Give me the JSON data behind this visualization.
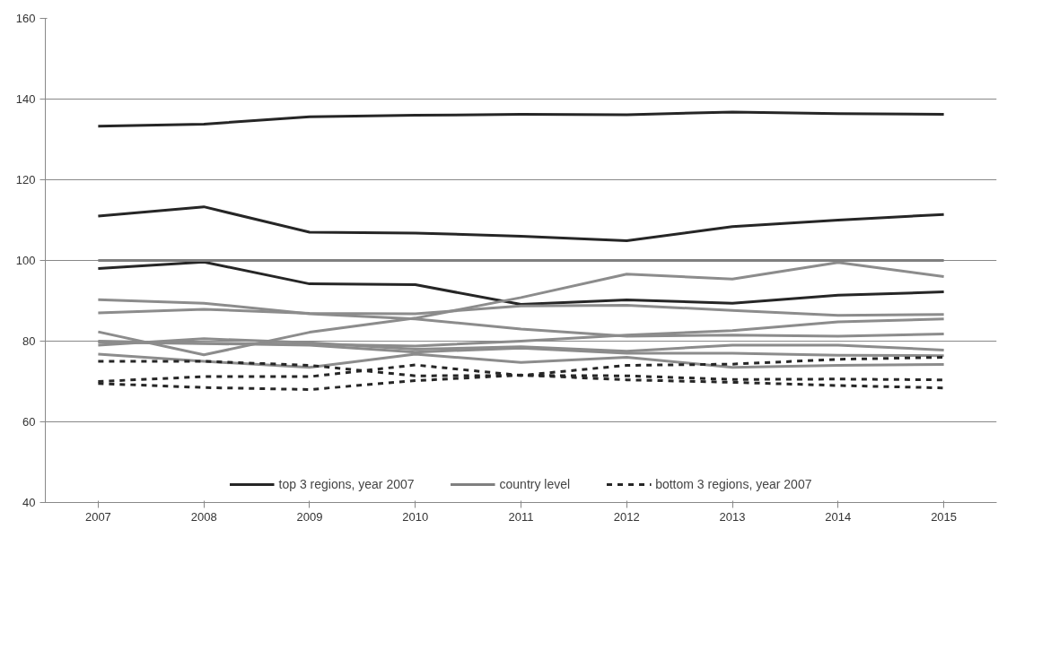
{
  "chart_data": {
    "type": "line",
    "categories": [
      "2007",
      "2008",
      "2009",
      "2010",
      "2011",
      "2012",
      "2013",
      "2014",
      "2015"
    ],
    "ylim": [
      40,
      160
    ],
    "yticks": [
      40,
      60,
      80,
      100,
      120,
      140,
      160
    ],
    "grid": "y",
    "legend": "bottom",
    "marker": "none",
    "series": [
      {
        "name": "top 3 regions, year 2007",
        "color": "#262626",
        "line_style": "solid",
        "values": [
          133.3,
          133.8,
          135.6,
          136.0,
          136.2,
          136.1,
          136.8,
          136.4,
          136.2
        ]
      },
      {
        "color": "#262626",
        "line_style": "solid",
        "values": [
          111.0,
          113.3,
          107.0,
          106.8,
          106.0,
          104.9,
          108.4,
          110.0,
          111.4
        ]
      },
      {
        "color": "#262626",
        "line_style": "solid",
        "values": [
          98.0,
          99.6,
          94.2,
          94.0,
          89.1,
          90.2,
          89.4,
          91.4,
          92.2
        ]
      },
      {
        "color": "#8c8c8c",
        "line_style": "solid",
        "values": [
          90.3,
          89.4,
          86.8,
          85.5,
          83.0,
          81.2,
          81.5,
          81.2,
          81.8
        ]
      },
      {
        "color": "#8c8c8c",
        "line_style": "solid",
        "values": [
          87.0,
          87.9,
          86.9,
          86.8,
          88.7,
          88.9,
          87.6,
          86.4,
          86.6
        ]
      },
      {
        "color": "#8c8c8c",
        "line_style": "solid",
        "values": [
          82.3,
          76.6,
          82.2,
          85.7,
          90.8,
          96.6,
          95.4,
          99.5,
          96.0
        ]
      },
      {
        "color": "#8c8c8c",
        "line_style": "solid",
        "values": [
          79.0,
          80.6,
          79.6,
          78.0,
          78.6,
          77.5,
          79.0,
          79.0,
          77.8
        ]
      },
      {
        "color": "#8c8c8c",
        "line_style": "solid",
        "values": [
          80.0,
          79.5,
          79.2,
          78.8,
          80.0,
          81.5,
          82.6,
          84.8,
          85.5
        ]
      },
      {
        "color": "#8c8c8c",
        "line_style": "solid",
        "values": [
          79.7,
          79.4,
          79.0,
          77.3,
          78.3,
          77.0,
          77.0,
          76.5,
          76.4
        ]
      },
      {
        "color": "#8c8c8c",
        "line_style": "solid",
        "values": [
          76.8,
          75.0,
          73.5,
          76.8,
          74.7,
          76.0,
          73.5,
          74.0,
          74.2
        ]
      },
      {
        "name": "country level",
        "color": "#7f7f7f",
        "line_style": "solid",
        "values": [
          100,
          100,
          100,
          100,
          100,
          100,
          100,
          100,
          100
        ]
      },
      {
        "name": "bottom 3 regions, year 2007",
        "color": "#262626",
        "line_style": "dashed",
        "values": [
          75.0,
          75.0,
          74.0,
          71.4,
          71.5,
          74.0,
          74.3,
          75.5,
          76.0
        ]
      },
      {
        "color": "#262626",
        "line_style": "dashed",
        "values": [
          70.0,
          71.2,
          71.2,
          74.1,
          71.5,
          71.4,
          70.5,
          70.6,
          70.4
        ]
      },
      {
        "color": "#262626",
        "line_style": "dashed",
        "values": [
          69.5,
          68.5,
          68.0,
          70.2,
          71.6,
          70.4,
          69.8,
          69.0,
          68.4
        ]
      }
    ]
  }
}
